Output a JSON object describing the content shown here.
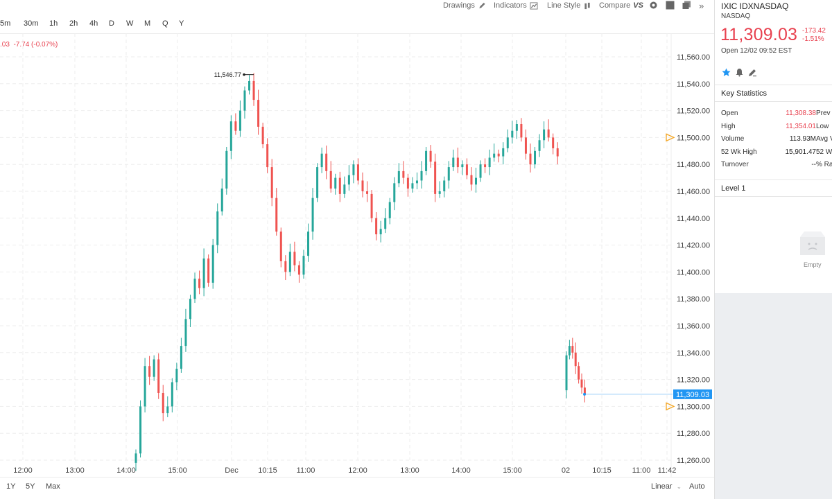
{
  "toolbar": {
    "drawings": "Drawings",
    "indicators": "Indicators",
    "line_style": "Line Style",
    "compare": "Compare",
    "compare_badge": "VS",
    "more": "»"
  },
  "intervals": [
    "5m",
    "30m",
    "1h",
    "2h",
    "4h",
    "D",
    "W",
    "M",
    "Q",
    "Y"
  ],
  "change_text": "-7.74 (-0.07%)",
  "change_prefix": ".03",
  "bottom": {
    "ranges": [
      "1Y",
      "5Y",
      "Max"
    ],
    "scale_mode": "Linear",
    "auto": "Auto"
  },
  "quote": {
    "title": "IXIC IDXNASDAQ",
    "exchange": "NASDAQ",
    "price": "11,309.03",
    "change": "-173.42",
    "change_pct": "-1.51%",
    "open_time": "Open 12/02 09:52 EST"
  },
  "key_statistics": {
    "title": "Key Statistics",
    "rows": [
      {
        "label": "Open",
        "value": "11,308.38",
        "value_color": "#e8414f",
        "label2": "Prev"
      },
      {
        "label": "High",
        "value": "11,354.01",
        "value_color": "#e8414f",
        "label2": "Low"
      },
      {
        "label": "Volume",
        "value": "113.93M",
        "value_color": "#222222",
        "label2": "Avg V"
      },
      {
        "label": "52 Wk High",
        "value": "15,901.47",
        "value_color": "#222222",
        "label2": "52 W"
      },
      {
        "label": "Turnover",
        "value": "--",
        "value_color": "#222222",
        "label2": "% Ra"
      }
    ]
  },
  "level1": {
    "title": "Level 1",
    "empty_label": "Empty"
  },
  "colors": {
    "up": "#26a69a",
    "down": "#ef5350",
    "accent": "#2196f3",
    "price_red": "#e8414f",
    "marker": "#f5a623"
  },
  "chart_data": {
    "type": "candlestick",
    "y_ticks": [
      "11,560.00",
      "11,540.00",
      "11,520.00",
      "11,500.00",
      "11,480.00",
      "11,460.00",
      "11,440.00",
      "11,420.00",
      "11,400.00",
      "11,380.00",
      "11,360.00",
      "11,340.00",
      "11,320.00",
      "11,300.00",
      "11,280.00",
      "11,260.00"
    ],
    "ylim": [
      11255,
      11570
    ],
    "x_ticks": [
      "12:00",
      "13:00",
      "14:00",
      "15:00",
      "Dec",
      "10:15",
      "11:00",
      "12:00",
      "13:00",
      "14:00",
      "15:00",
      "02",
      "10:15",
      "11:00",
      "11:42"
    ],
    "high_annotation": "11,546.77",
    "high_value": 11546.77,
    "last_price_label": "11,309.03",
    "last_price": 11309.03,
    "alert_levels": [
      11500,
      11300
    ],
    "segments": [
      {
        "name": "session-1",
        "start": 11258,
        "points": [
          11265,
          11300,
          11330,
          11322,
          11335,
          11310,
          11295,
          11300,
          11318,
          11328,
          11345,
          11365,
          11380,
          11395,
          11388,
          11410,
          11392,
          11420,
          11445,
          11462,
          11490,
          11512,
          11505,
          11520,
          11535,
          11542,
          11528,
          11508,
          11495,
          11478,
          11455,
          11430,
          11408,
          11400,
          11415,
          11405,
          11398,
          11412,
          11430,
          11455,
          11478,
          11488,
          11475,
          11462,
          11470,
          11458,
          11465,
          11472,
          11480,
          11468,
          11460,
          11458,
          11440,
          11428,
          11432,
          11440,
          11452,
          11466,
          11475,
          11470,
          11462,
          11466,
          11468,
          11475,
          11490,
          11482,
          11458,
          11460,
          11468,
          11478,
          11485,
          11478,
          11480,
          11472,
          11465,
          11470,
          11480,
          11478,
          11485,
          11488,
          11486,
          11492,
          11500,
          11505,
          11510,
          11500,
          11488,
          11480,
          11490,
          11498,
          11506,
          11500,
          11492,
          11486
        ]
      },
      {
        "name": "session-2",
        "start": 11312,
        "points": [
          11338,
          11345,
          11340,
          11330,
          11320,
          11314,
          11309
        ]
      }
    ]
  }
}
